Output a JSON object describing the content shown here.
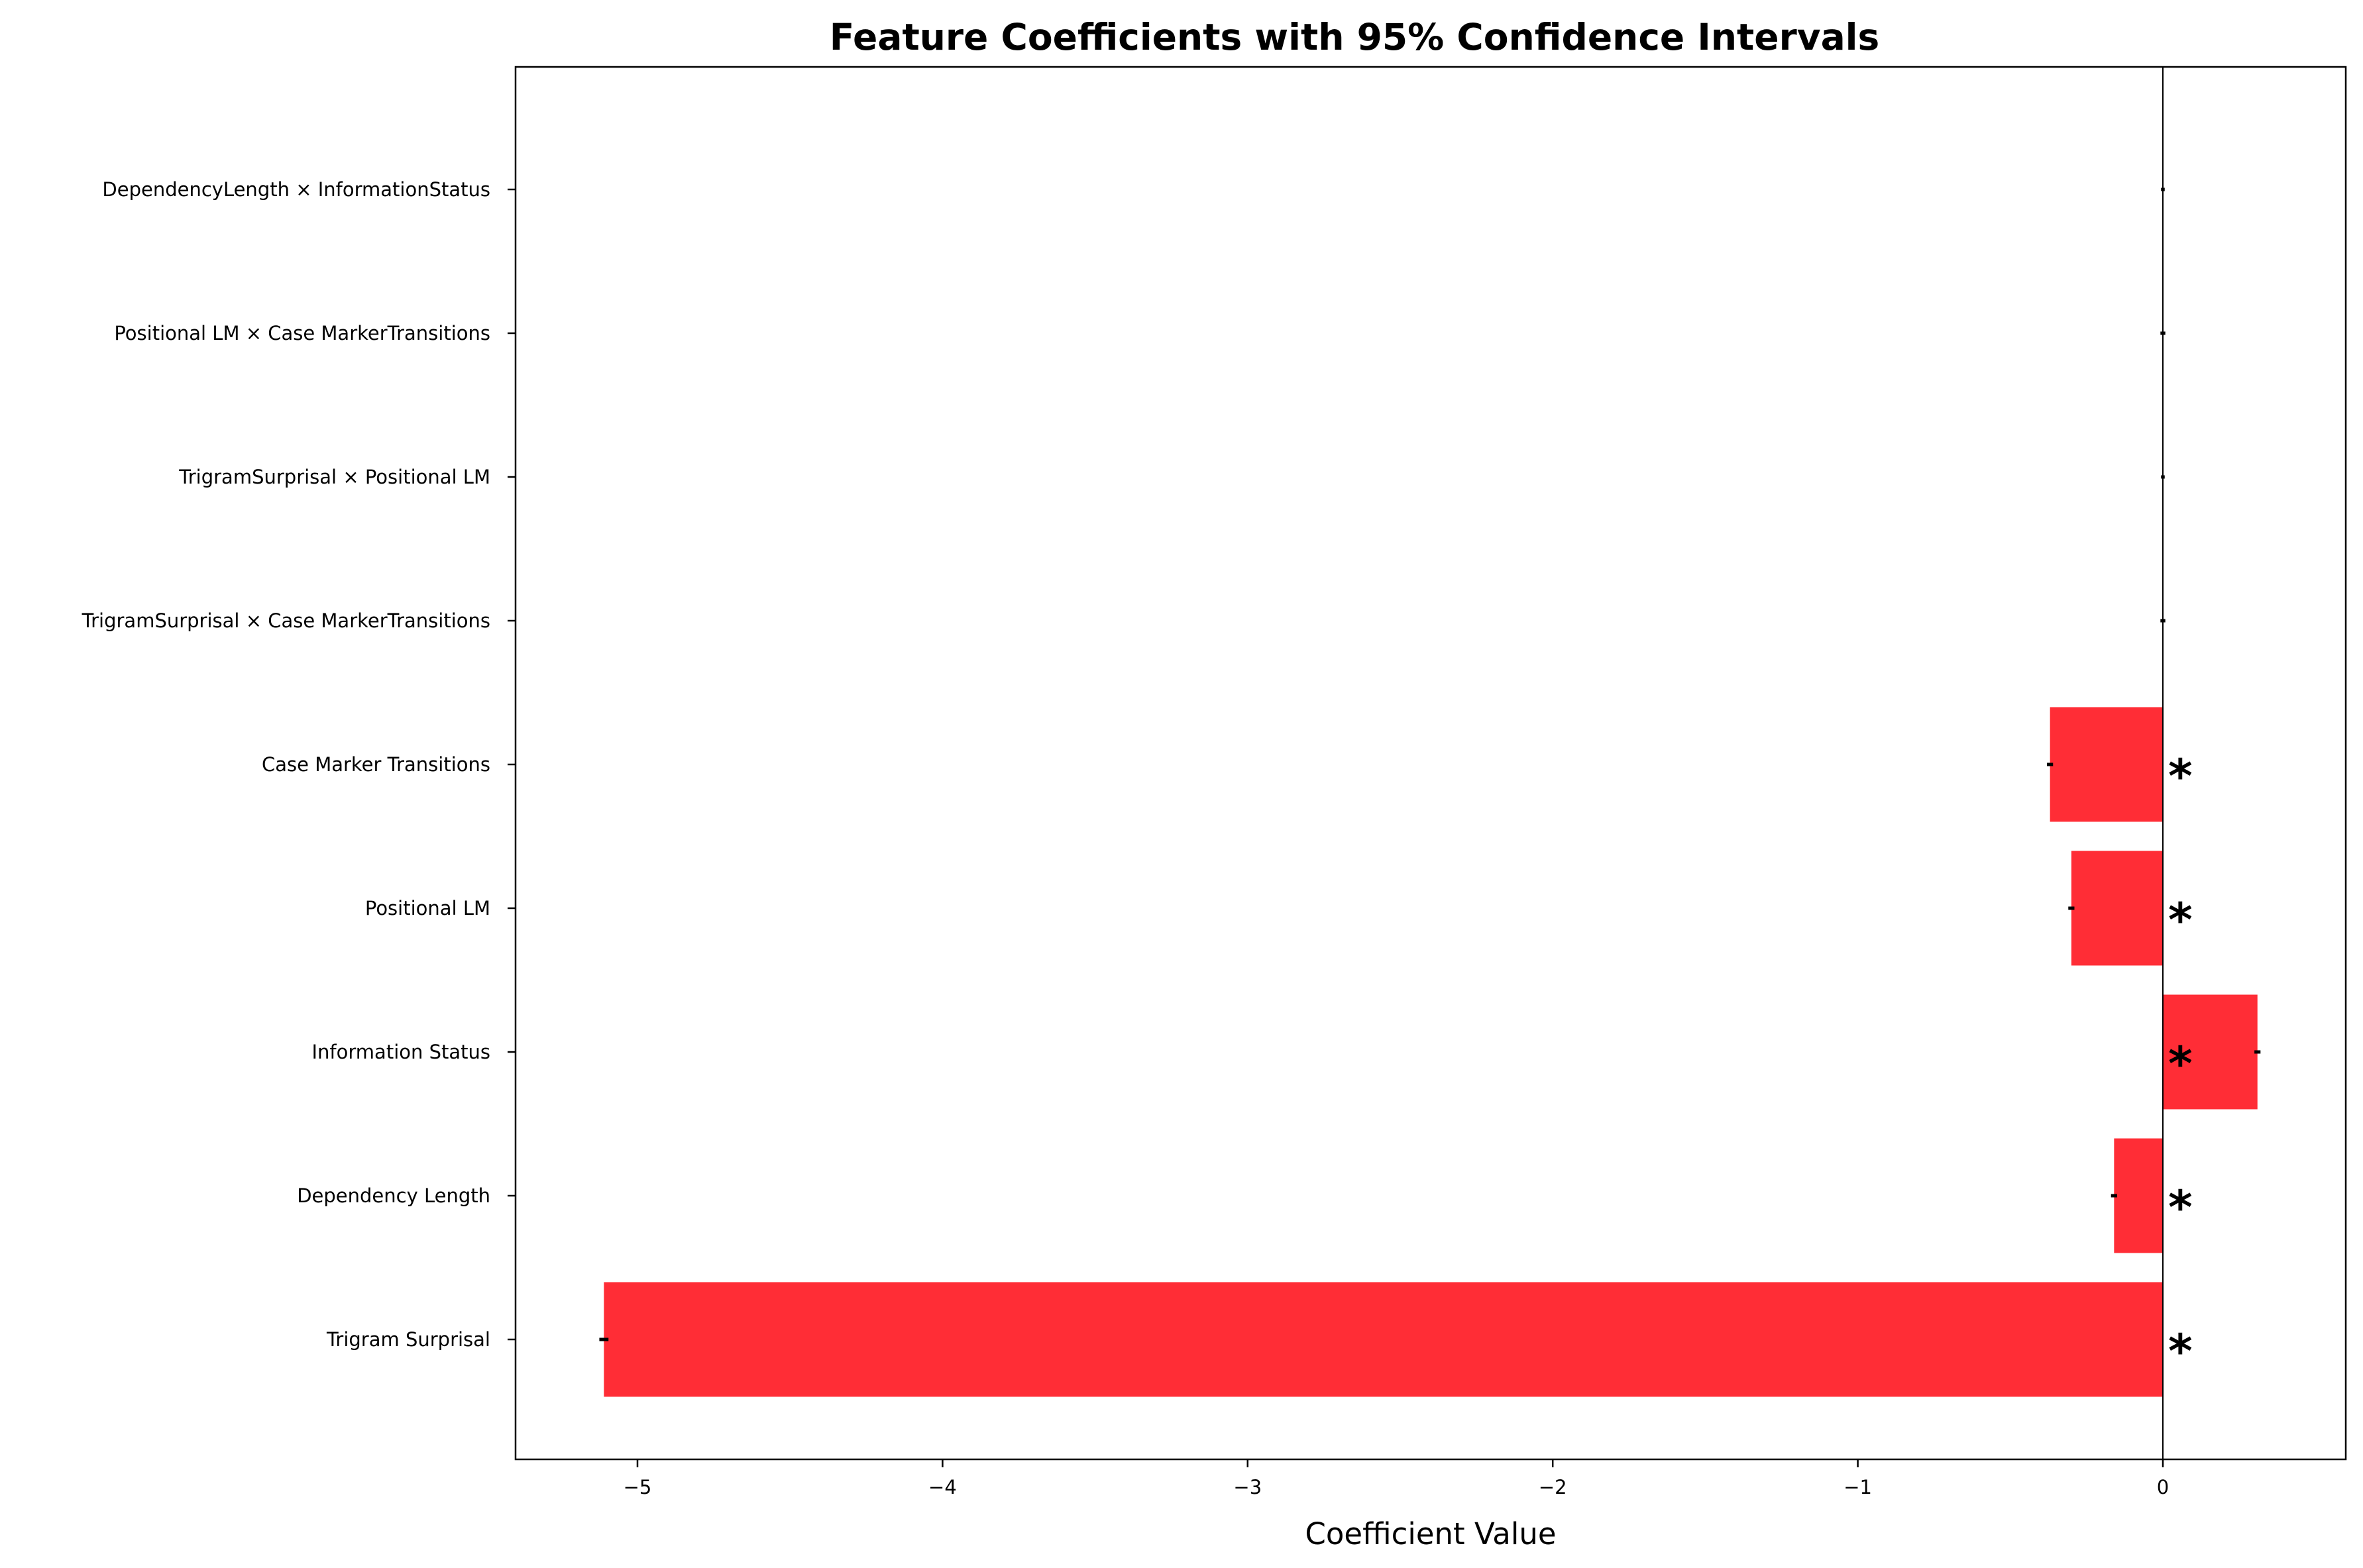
{
  "chart_data": {
    "type": "bar",
    "orientation": "horizontal",
    "title": "Feature Coefficients with 95% Confidence Intervals",
    "xlabel": "Coefficient Value",
    "ylabel": "",
    "xlim": [
      -5.4,
      0.6
    ],
    "xticks": [
      -5,
      -4,
      -3,
      -2,
      -1,
      0
    ],
    "xtick_labels": [
      "−5",
      "−4",
      "−3",
      "−2",
      "−1",
      "0"
    ],
    "categories": [
      "Trigram Surprisal",
      "Dependency Length",
      "Information Status",
      "Positional LM",
      "Case Marker Transitions",
      "TrigramSurprisal × Case MarkerTransitions",
      "TrigramSurprisal × Positional LM",
      "Positional LM × Case MarkerTransitions",
      "DependencyLength × InformationStatus"
    ],
    "values": [
      -5.11,
      -0.16,
      0.31,
      -0.3,
      -0.37,
      0.0,
      0.0,
      0.0,
      0.0
    ],
    "ci_low": [
      -5.125,
      -0.17,
      0.3,
      -0.31,
      -0.38,
      -0.008,
      -0.006,
      -0.008,
      -0.006
    ],
    "ci_high": [
      -5.095,
      -0.15,
      0.32,
      -0.29,
      -0.36,
      0.008,
      0.006,
      0.008,
      0.006
    ],
    "significant": [
      true,
      true,
      true,
      true,
      true,
      false,
      false,
      false,
      false
    ],
    "significance_mark": "*",
    "bar_color": "#ff2d36",
    "grid": false,
    "zero_line": true
  }
}
